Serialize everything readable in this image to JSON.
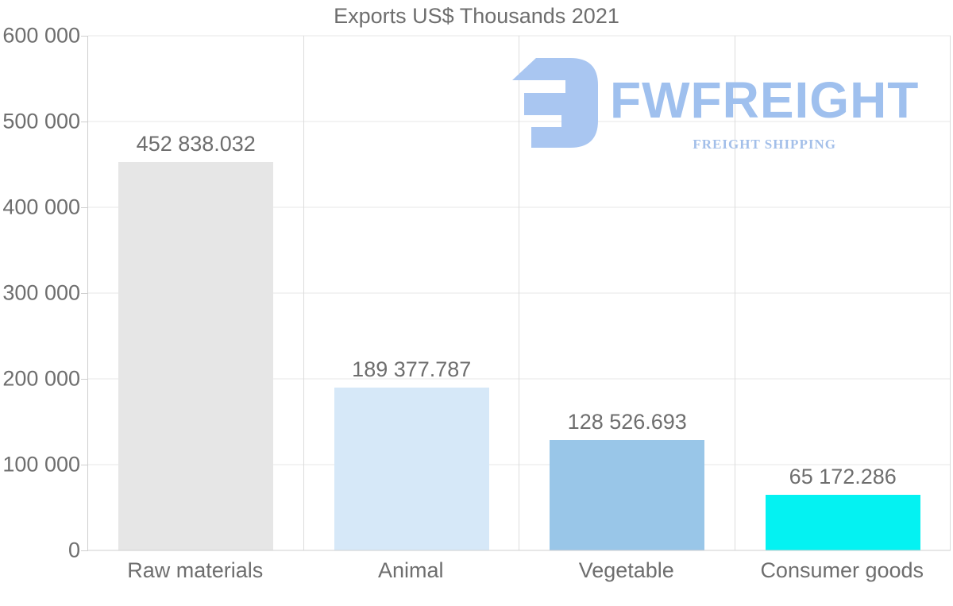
{
  "chart_data": {
    "type": "bar",
    "title": "Exports US$ Thousands 2021",
    "categories": [
      "Raw materials",
      "Animal",
      "Vegetable",
      "Consumer goods"
    ],
    "values": [
      452838.032,
      189377.787,
      128526.693,
      65172.286
    ],
    "display_values": [
      "452 838.032",
      "189 377.787",
      "128 526.693",
      "65 172.286"
    ],
    "bar_colors": [
      "#e6e6e6",
      "#d6e8f8",
      "#99c6e8",
      "#04f2f2"
    ],
    "ylim": [
      0,
      600000
    ],
    "y_ticks": [
      "600 000",
      "500 000",
      "400 000",
      "300 000",
      "200 000",
      "100 000",
      "0"
    ],
    "y_tick_values": [
      600000,
      500000,
      400000,
      300000,
      200000,
      100000,
      0
    ],
    "xlabel": "",
    "ylabel": "",
    "grid": "horizontal lines at every 100 000; vertical lines at category boundaries",
    "legend": "none"
  },
  "logo": {
    "name": "FWFREIGHT",
    "tagline": "FREIGHT SHIPPING",
    "mark_color": "#a9c6f1",
    "name_color": "#9fc0ee",
    "tagline_color": "#a3bfe9"
  },
  "colors": {
    "background": "#ffffff",
    "text": "#6e6e6e",
    "gridline_horizontal": "#e7e7e7",
    "gridline_vertical": "#dcdcdc",
    "axis_line": "#cfcfcf"
  }
}
